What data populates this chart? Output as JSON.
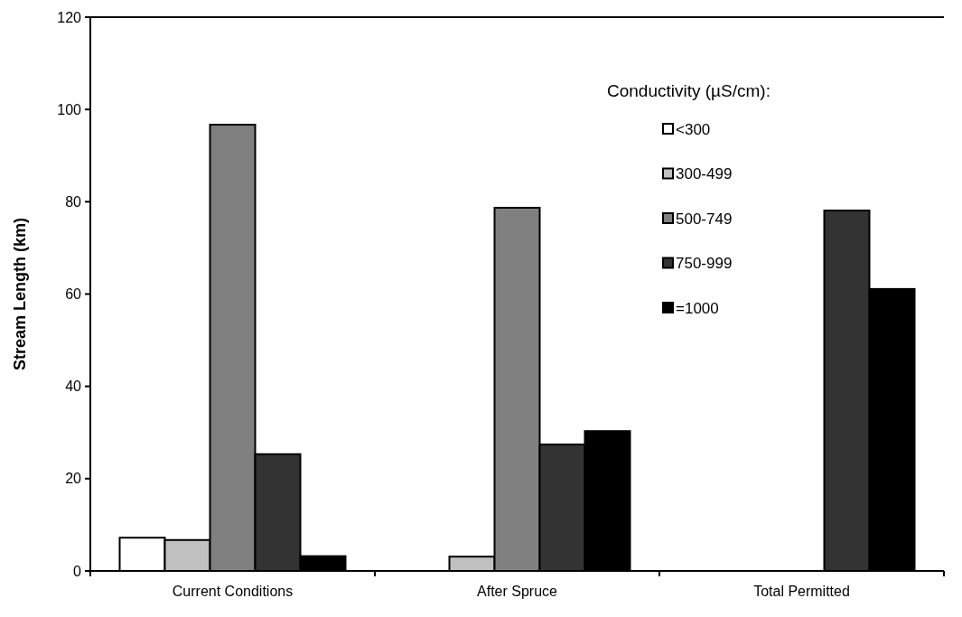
{
  "chart_data": {
    "type": "bar",
    "ylabel": "Stream Length (km)",
    "legend_title": "Conductivity (µS/cm):",
    "legend": "top right",
    "categories": [
      "Current Conditions",
      "After Spruce",
      "Total Permitted"
    ],
    "series": [
      {
        "name": "<300",
        "color": "#ffffff",
        "values": [
          7.2,
          0,
          0
        ]
      },
      {
        "name": "300-499",
        "color": "#c0c0c0",
        "values": [
          6.7,
          3.1,
          0
        ]
      },
      {
        "name": "500-749",
        "color": "#808080",
        "values": [
          96.7,
          78.7,
          0
        ]
      },
      {
        "name": "750-999",
        "color": "#333333",
        "values": [
          25.3,
          27.4,
          78.1
        ]
      },
      {
        "name": "=1000",
        "color": "#000000",
        "values": [
          3.2,
          30.3,
          61.1
        ]
      }
    ],
    "ylim": [
      0,
      120
    ],
    "yticks": [
      0,
      20,
      40,
      60,
      80,
      100,
      120
    ],
    "grid": false
  }
}
